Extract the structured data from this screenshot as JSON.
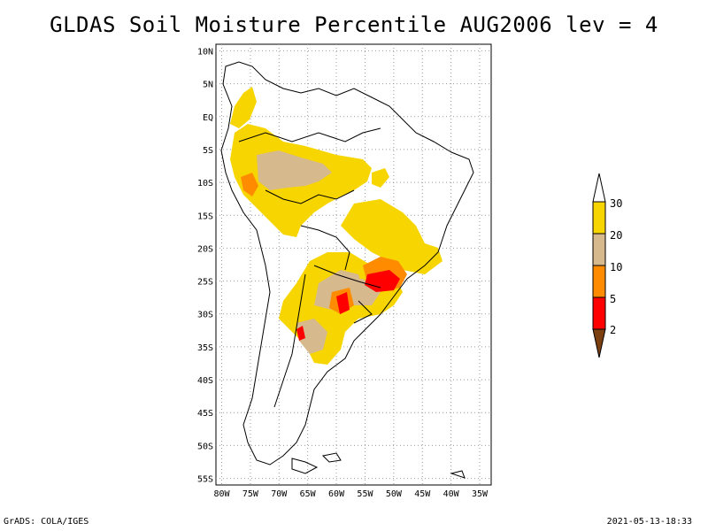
{
  "title": "GLDAS Soil Moisture Percentile AUG2006 lev = 4",
  "map": {
    "lat_labels": [
      "10N",
      "5N",
      "EQ",
      "5S",
      "10S",
      "15S",
      "20S",
      "25S",
      "30S",
      "35S",
      "40S",
      "45S",
      "50S",
      "55S"
    ],
    "lon_labels": [
      "80W",
      "75W",
      "70W",
      "65W",
      "60W",
      "55W",
      "50W",
      "45W",
      "40W",
      "35W"
    ],
    "lon_range": [
      -81,
      -33
    ],
    "lat_range": [
      -56,
      11
    ],
    "grid": true,
    "region": "South America"
  },
  "legend": {
    "labels": [
      "30",
      "20",
      "10",
      "5",
      "2"
    ],
    "colors": {
      "above_30": "#ffffff",
      "20_30": "#f7d500",
      "10_20": "#d7b98e",
      "5_10": "#ff8c00",
      "2_5": "#ff0000",
      "below_2": "#7b3f10"
    }
  },
  "footer": {
    "left": "GrADS: COLA/IGES",
    "right": "2021-05-13-18:33"
  }
}
